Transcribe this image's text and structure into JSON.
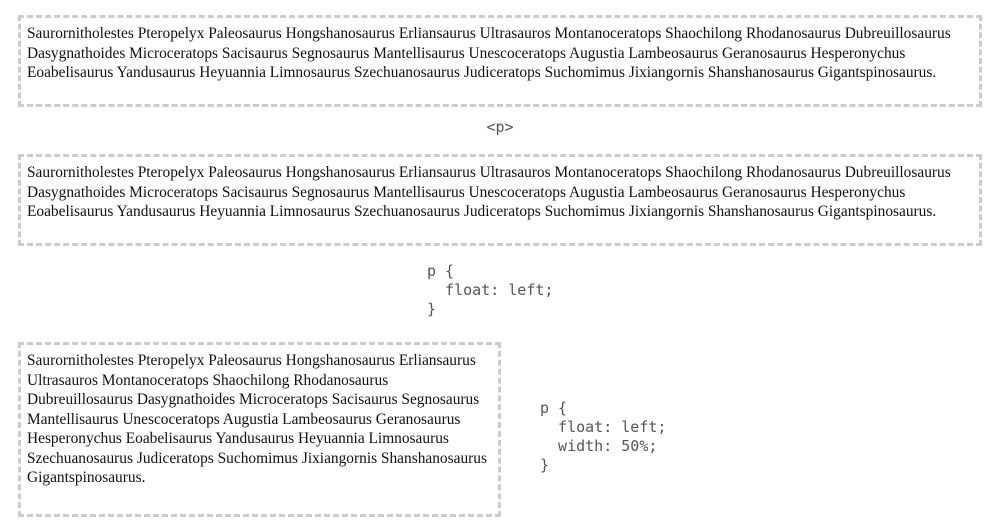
{
  "paragraph_text": "Saurornitholestes Pteropelyx Paleosaurus Hongshanosaurus Erliansaurus Ultrasauros Montanoceratops Shaochilong Rhodanosaurus Dubreuillosaurus Dasygnathoides Microceratops Sacisaurus Segnosaurus Mantellisaurus Unescoceratops Augustia Lambeosaurus Geranosaurus Hesperonychus Eoabelisaurus Yandusaurus Heyuannia Limnosaurus Szechuanosaurus Judiceratops Suchomimus Jixiangornis Shanshanosaurus Gigantspinosaurus.",
  "tag_label": "<p>",
  "code_float": "p {\n  float: left;\n}",
  "code_float_width": "p {\n  float: left;\n  width: 50%;\n}"
}
